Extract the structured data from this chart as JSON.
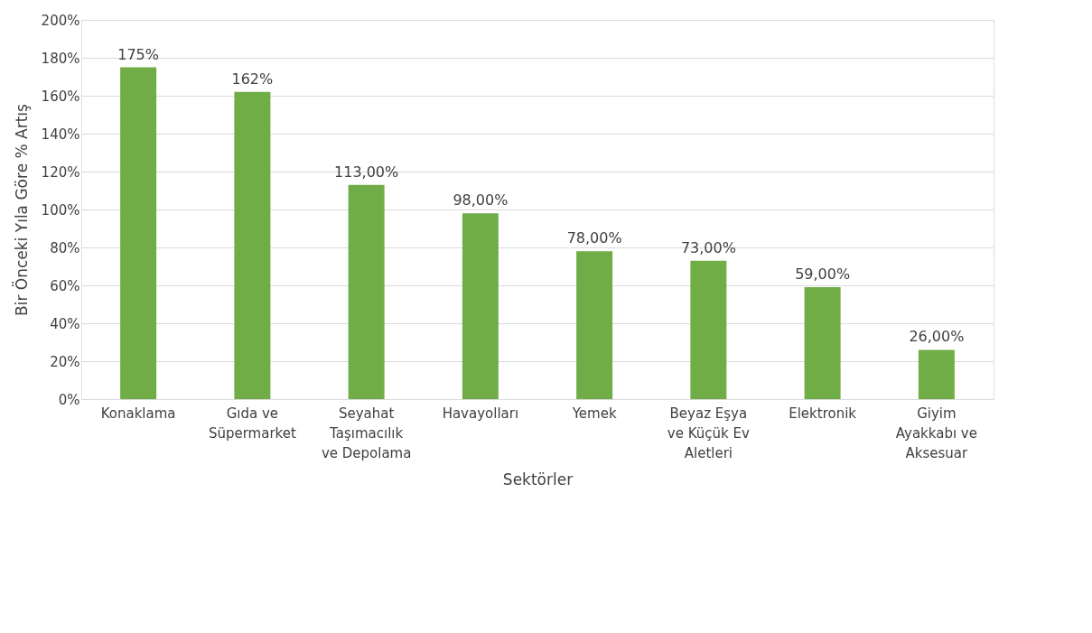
{
  "chart_data": {
    "type": "bar",
    "xlabel": "Sektörler",
    "ylabel": "Bir Önceki Yıla Göre % Artış",
    "categories": [
      "Konaklama",
      "Gıda ve Süpermarket",
      "Seyahat Taşımacılık ve Depolama",
      "Havayolları",
      "Yemek",
      "Beyaz Eşya ve Küçük Ev Aletleri",
      "Elektronik",
      "Giyim Ayakkabı ve Aksesuar"
    ],
    "values": [
      175,
      162,
      113,
      98,
      78,
      73,
      59,
      26
    ],
    "value_labels": [
      "175%",
      "162%",
      "113,00%",
      "98,00%",
      "78,00%",
      "73,00%",
      "59,00%",
      "26,00%"
    ],
    "color": "#70ad47",
    "ylim": [
      0,
      200
    ],
    "yticks": [
      {
        "value": 0,
        "label": "0%"
      },
      {
        "value": 20,
        "label": "20%"
      },
      {
        "value": 40,
        "label": "40%"
      },
      {
        "value": 60,
        "label": "60%"
      },
      {
        "value": 80,
        "label": "80%"
      },
      {
        "value": 100,
        "label": "100%"
      },
      {
        "value": 120,
        "label": "120%"
      },
      {
        "value": 140,
        "label": "140%"
      },
      {
        "value": 160,
        "label": "160%"
      },
      {
        "value": 180,
        "label": "180%"
      },
      {
        "value": 200,
        "label": "200%"
      }
    ],
    "grid": "y"
  }
}
